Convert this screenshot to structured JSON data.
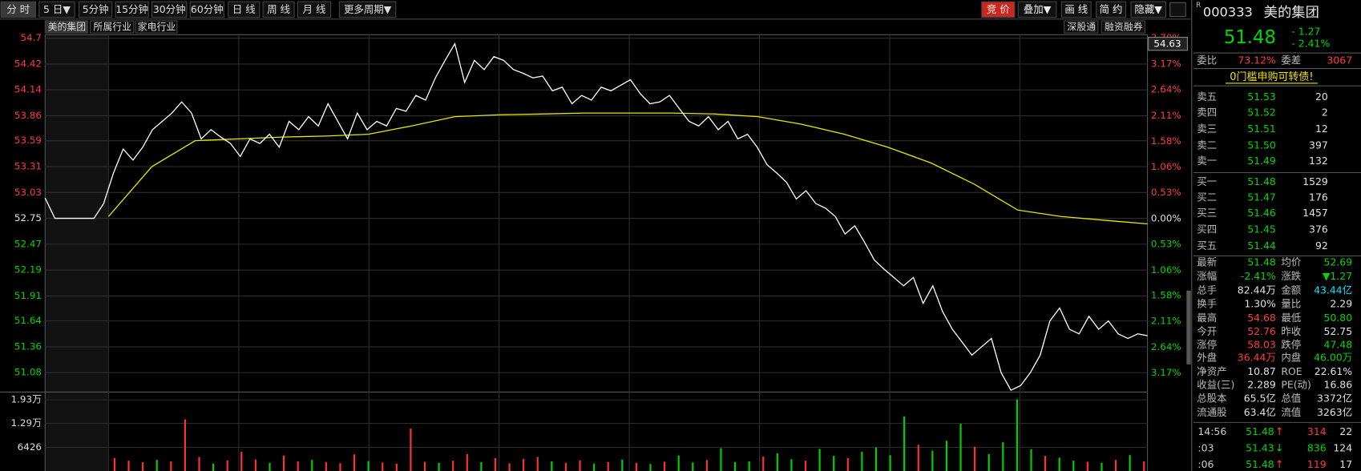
{
  "toolbar": {
    "periods": [
      "分 时",
      "5 日▼",
      "5分钟",
      "15分钟",
      "30分钟",
      "60分钟",
      "日 线",
      "周 线",
      "月 线",
      "更多周期▼"
    ],
    "tools": [
      "竞 价",
      "叠加▼",
      "画 线",
      "简 约",
      "隐藏▼"
    ]
  },
  "tabs": [
    "美的集团",
    "所属行业",
    "家电行业"
  ],
  "data_tabs": [
    "深股通",
    "融资融券"
  ],
  "chart": {
    "type": "line",
    "cursor_price": "54.63",
    "grid": true,
    "price": {
      "color": "#ffffff",
      "values": [
        52.97,
        52.75,
        52.75,
        52.75,
        52.75,
        52.75,
        52.91,
        53.24,
        53.5,
        53.38,
        53.52,
        53.71,
        53.8,
        53.89,
        54.01,
        53.89,
        53.61,
        53.71,
        53.63,
        53.56,
        53.42,
        53.61,
        53.56,
        53.66,
        53.52,
        53.8,
        53.71,
        53.85,
        53.75,
        53.99,
        53.8,
        53.61,
        53.89,
        53.71,
        53.8,
        53.75,
        53.94,
        53.91,
        54.08,
        54.03,
        54.27,
        54.46,
        54.64,
        54.22,
        54.46,
        54.36,
        54.5,
        54.46,
        54.36,
        54.32,
        54.27,
        54.29,
        54.13,
        54.17,
        53.99,
        54.08,
        54.03,
        54.17,
        54.13,
        54.19,
        54.25,
        54.1,
        53.99,
        54.01,
        54.08,
        53.94,
        53.8,
        53.75,
        53.85,
        53.71,
        53.8,
        53.61,
        53.66,
        53.52,
        53.33,
        53.24,
        53.14,
        52.96,
        53.05,
        52.91,
        52.86,
        52.77,
        52.58,
        52.67,
        52.49,
        52.3,
        52.2,
        52.11,
        52.02,
        52.11,
        51.83,
        52.02,
        51.74,
        51.55,
        51.41,
        51.27,
        51.36,
        51.45,
        51.08,
        50.89,
        50.94,
        51.08,
        51.27,
        51.64,
        51.78,
        51.55,
        51.5,
        51.69,
        51.55,
        51.64,
        51.5,
        51.45,
        51.5,
        51.48
      ]
    },
    "avg": {
      "color": "#e6e600",
      "values": [
        52.77,
        53.31,
        53.59,
        53.61,
        53.63,
        53.64,
        53.66,
        53.75,
        53.85,
        53.87,
        53.88,
        53.89,
        53.89,
        53.89,
        53.88,
        53.85,
        53.77,
        53.66,
        53.52,
        53.35,
        53.12,
        52.84,
        52.77,
        52.73,
        52.69
      ]
    },
    "ylim": [
      50.87,
      54.7
    ],
    "yticks": [
      54.7,
      54.42,
      54.14,
      53.86,
      53.59,
      53.31,
      53.03,
      52.75,
      52.47,
      52.19,
      51.91,
      51.64,
      51.36,
      51.08
    ],
    "y2lim": [
      -3.56,
      3.7
    ],
    "y2ticks": [
      {
        "value": 3.7,
        "label": "3.70%"
      },
      {
        "value": 3.17,
        "label": "3.17%"
      },
      {
        "value": 2.64,
        "label": "2.64%"
      },
      {
        "value": 2.11,
        "label": "2.11%"
      },
      {
        "value": 1.58,
        "label": "1.58%"
      },
      {
        "value": 1.06,
        "label": "1.06%"
      },
      {
        "value": 0.53,
        "label": "0.53%"
      },
      {
        "value": 0,
        "label": "0.00%"
      },
      {
        "value": -0.53,
        "label": "0.53%"
      },
      {
        "value": -1.06,
        "label": "1.06%"
      },
      {
        "value": -1.58,
        "label": "1.58%"
      },
      {
        "value": -2.11,
        "label": "2.11%"
      },
      {
        "value": -2.64,
        "label": "2.64%"
      },
      {
        "value": -3.17,
        "label": "3.17%"
      }
    ],
    "volume": {
      "up_color": "#ff3232",
      "down_color": "#00d200",
      "ylim": [
        0,
        21400
      ],
      "yticks": [
        {
          "value": 19300,
          "label": "1.93万"
        },
        {
          "value": 12900,
          "label": "1.29万"
        },
        6426
      ],
      "values": [
        3500,
        2800,
        2400,
        3000,
        2600,
        14000,
        3800,
        2000,
        2900,
        5200,
        3100,
        2200,
        4200,
        2600,
        3000,
        2400,
        2100,
        4500,
        2700,
        2300,
        2000,
        11500,
        2500,
        2200,
        2800,
        4600,
        2400,
        3500,
        2100,
        3300,
        3800,
        2600,
        2200,
        2900,
        2000,
        2400,
        3100,
        2200,
        1900,
        2500,
        4200,
        2300,
        3000,
        6200,
        2400,
        2600,
        3900,
        4800,
        3200,
        2800,
        6000,
        4100,
        3500,
        5200,
        6400,
        4300,
        14800,
        7100,
        5500,
        8200,
        12800,
        6600,
        4600,
        7800,
        19400,
        5900,
        4100,
        3600,
        2800,
        2500,
        2200,
        3000,
        4300,
        2600
      ],
      "up": [
        true,
        true,
        true,
        false,
        true,
        true,
        true,
        false,
        true,
        true,
        true,
        false,
        true,
        true,
        false,
        true,
        true,
        true,
        false,
        true,
        true,
        true,
        true,
        false,
        true,
        true,
        false,
        true,
        true,
        true,
        true,
        false,
        true,
        true,
        false,
        true,
        false,
        true,
        false,
        true,
        false,
        false,
        true,
        false,
        false,
        false,
        true,
        false,
        false,
        true,
        false,
        false,
        true,
        false,
        false,
        false,
        false,
        true,
        false,
        false,
        false,
        true,
        false,
        false,
        false,
        false,
        true,
        false,
        false,
        true,
        false,
        true,
        false,
        true
      ]
    }
  },
  "quote": {
    "market_flag": "R",
    "code": "000333",
    "name": "美的集团",
    "last": "51.48",
    "change": "- 1.27",
    "change_pct": "- 2.41%",
    "ratio_label": "委比",
    "ratio": "73.12%",
    "diff_label": "委差",
    "diff": "3067",
    "notice": "0门槛申购可转债!",
    "asks": [
      {
        "label": "卖五",
        "price": "51.53",
        "volume": "20"
      },
      {
        "label": "卖四",
        "price": "51.52",
        "volume": "2"
      },
      {
        "label": "卖三",
        "price": "51.51",
        "volume": "12"
      },
      {
        "label": "卖二",
        "price": "51.50",
        "volume": "397"
      },
      {
        "label": "卖一",
        "price": "51.49",
        "volume": "132"
      }
    ],
    "bids": [
      {
        "label": "买一",
        "price": "51.48",
        "volume": "1529"
      },
      {
        "label": "买二",
        "price": "51.47",
        "volume": "176"
      },
      {
        "label": "买三",
        "price": "51.46",
        "volume": "1457"
      },
      {
        "label": "买四",
        "price": "51.45",
        "volume": "376"
      },
      {
        "label": "买五",
        "price": "51.44",
        "volume": "92"
      }
    ],
    "stats": [
      [
        {
          "label": "最新",
          "value": "51.48",
          "color": "down"
        },
        {
          "label": "均价",
          "value": "52.69",
          "color": "down"
        }
      ],
      [
        {
          "label": "涨幅",
          "value": "-2.41%",
          "color": "down"
        },
        {
          "label": "涨跌",
          "value": "▼1.27",
          "color": "down"
        }
      ],
      [
        {
          "label": "总手",
          "value": "82.44万",
          "color": "flat"
        },
        {
          "label": "金额",
          "value": "43.44亿",
          "color": "cyan"
        }
      ],
      [
        {
          "label": "换手",
          "value": "1.30%",
          "color": "flat"
        },
        {
          "label": "量比",
          "value": "2.29",
          "color": "flat"
        }
      ],
      [
        {
          "label": "最高",
          "value": "54.68",
          "color": "up"
        },
        {
          "label": "最低",
          "value": "50.80",
          "color": "down"
        }
      ],
      [
        {
          "label": "今开",
          "value": "52.76",
          "color": "up"
        },
        {
          "label": "昨收",
          "value": "52.75",
          "color": "flat"
        }
      ],
      [
        {
          "label": "涨停",
          "value": "58.03",
          "color": "up"
        },
        {
          "label": "跌停",
          "value": "47.48",
          "color": "down"
        }
      ],
      [
        {
          "label": "外盘",
          "value": "36.44万",
          "color": "up"
        },
        {
          "label": "内盘",
          "value": "46.00万",
          "color": "down"
        }
      ],
      [
        {
          "label": "净资产",
          "value": "10.87",
          "color": "flat"
        },
        {
          "label": "ROE",
          "value": "22.61%",
          "color": "flat"
        }
      ],
      [
        {
          "label": "收益(三)",
          "value": "2.289",
          "color": "flat"
        },
        {
          "label": "PE(动)",
          "value": "16.86",
          "color": "flat"
        }
      ],
      [
        {
          "label": "总股本",
          "value": "65.5亿",
          "color": "flat"
        },
        {
          "label": "总值",
          "value": "3372亿",
          "color": "flat"
        }
      ],
      [
        {
          "label": "流通股",
          "value": "63.4亿",
          "color": "flat"
        },
        {
          "label": "流值",
          "value": "3263亿",
          "color": "flat"
        }
      ]
    ],
    "trades": [
      {
        "time": "14:56",
        "price": "51.48",
        "arrow": "↑",
        "volume": "314",
        "count": "22",
        "color": "up"
      },
      {
        "time": ":03",
        "price": "51.43",
        "arrow": "↓",
        "volume": "836",
        "count": "124",
        "color": "down"
      },
      {
        "time": ":06",
        "price": "51.48",
        "arrow": "↑",
        "volume": "119",
        "count": "17",
        "color": "up"
      }
    ]
  }
}
